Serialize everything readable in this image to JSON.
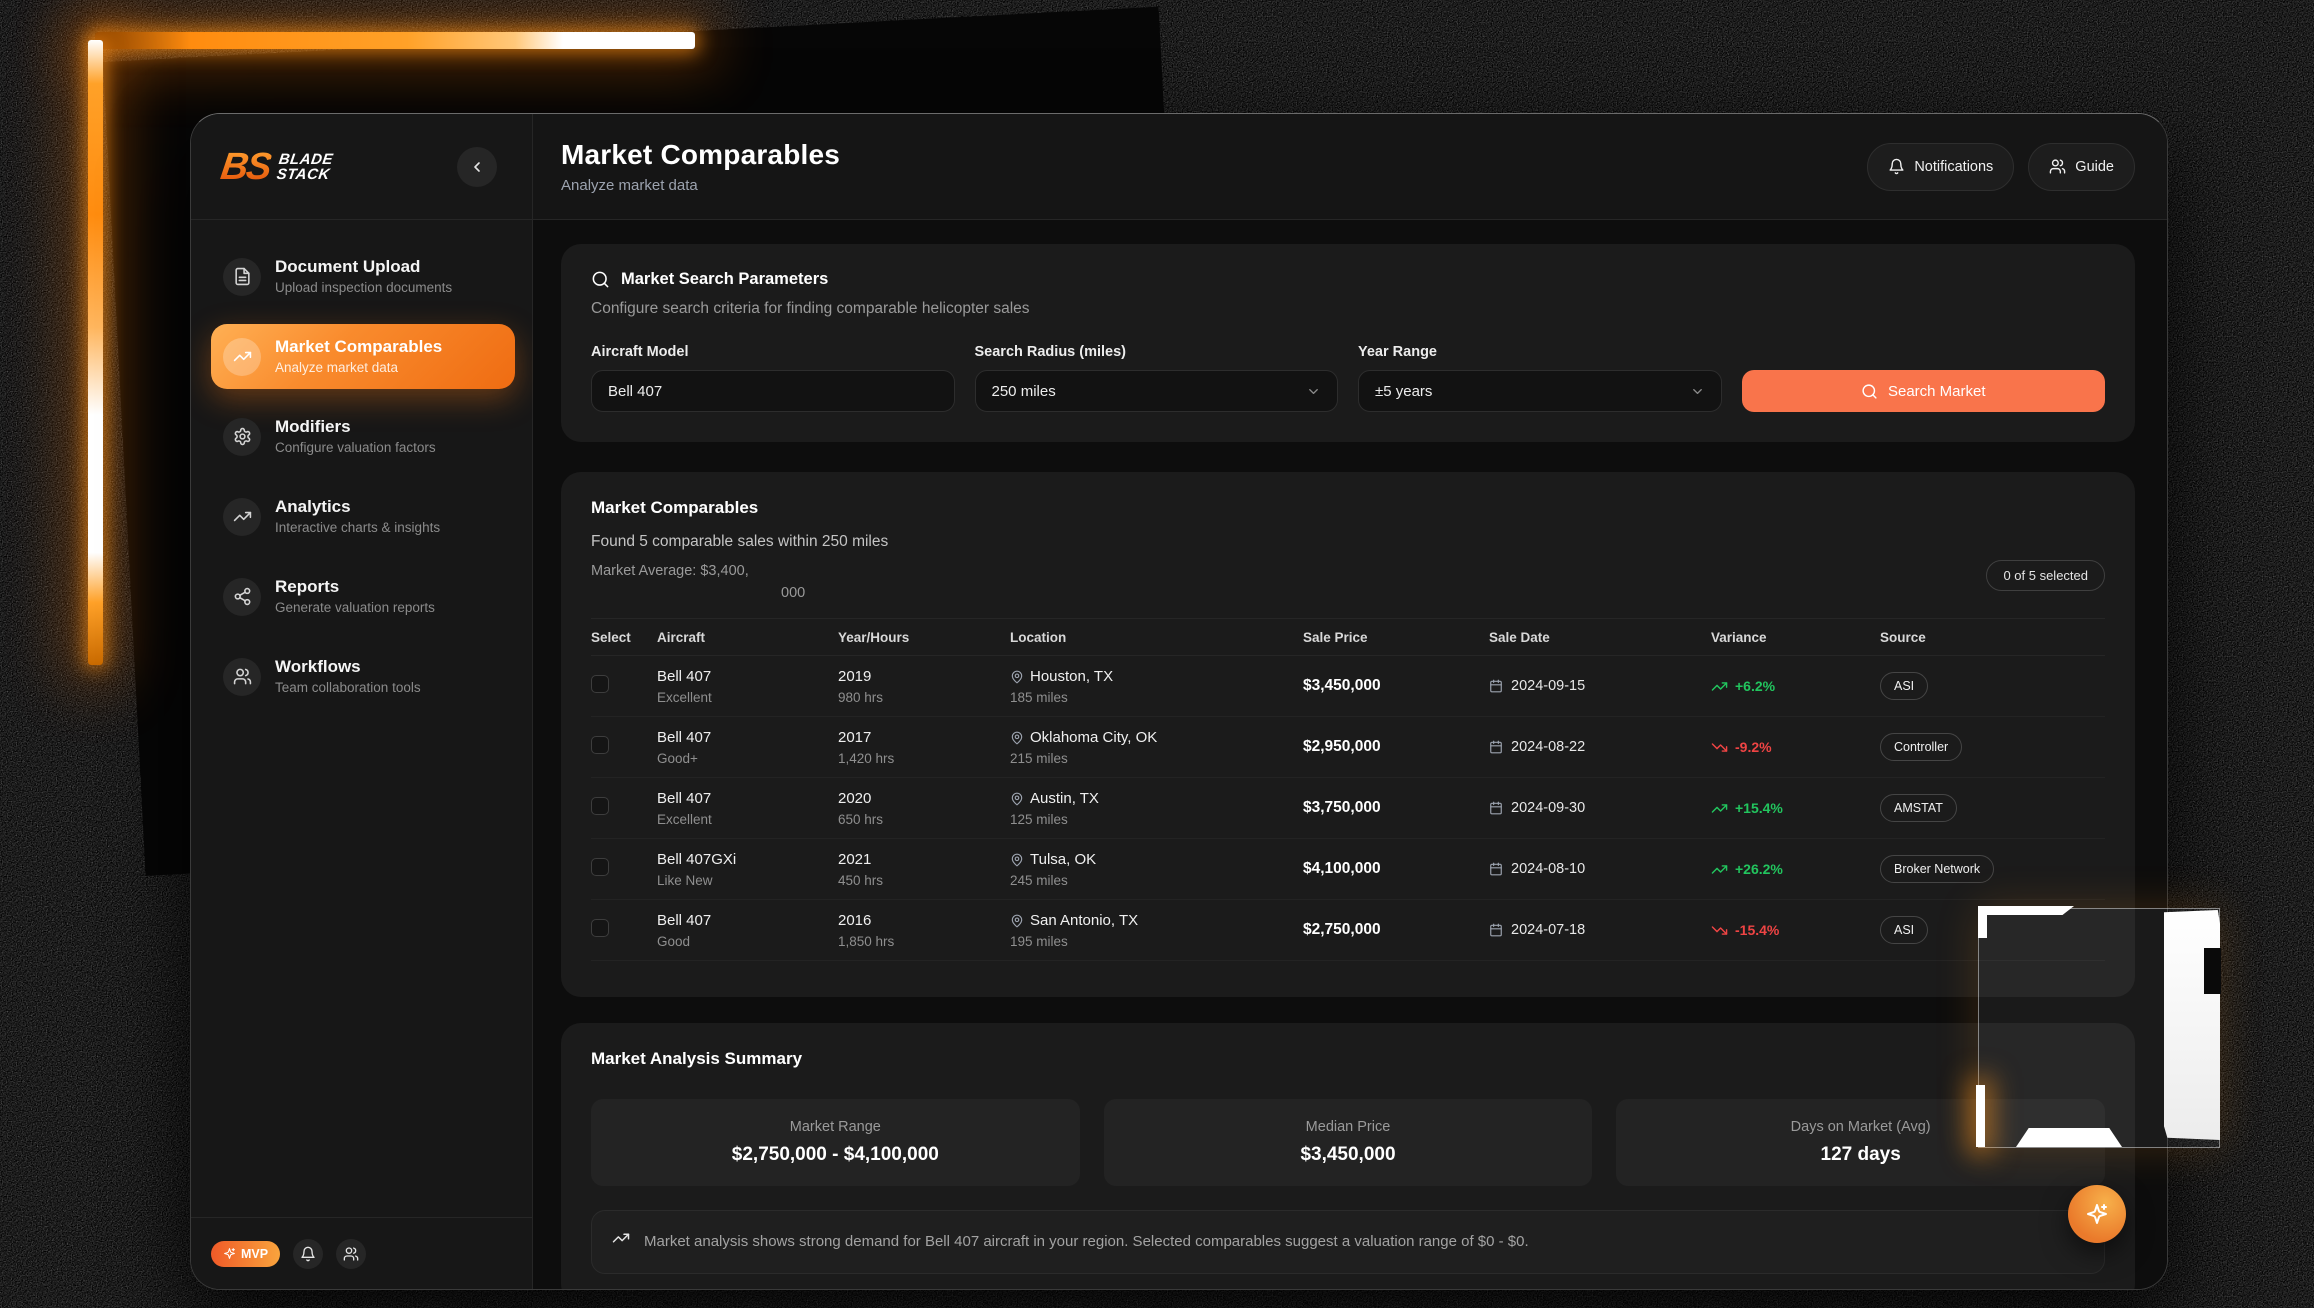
{
  "colors": {
    "accent": "#f97316",
    "accent_button": "#f9744b",
    "positive": "#22c55e",
    "negative": "#ef4444"
  },
  "brand": {
    "logo_mark": "BS",
    "logo_line1": "BLADE",
    "logo_line2": "STACK",
    "mvp_badge": "MVP"
  },
  "header": {
    "title": "Market Comparables",
    "subtitle": "Analyze market data",
    "notifications_label": "Notifications",
    "notifications_icon": "bell-icon",
    "guide_label": "Guide",
    "guide_icon": "users-icon"
  },
  "sidebar": {
    "items": [
      {
        "label": "Document Upload",
        "sublabel": "Upload inspection documents",
        "icon": "file-text-icon",
        "active": false
      },
      {
        "label": "Market Comparables",
        "sublabel": "Analyze market data",
        "icon": "trending-up-icon",
        "active": true
      },
      {
        "label": "Modifiers",
        "sublabel": "Configure valuation factors",
        "icon": "gear-icon",
        "active": false
      },
      {
        "label": "Analytics",
        "sublabel": "Interactive charts & insights",
        "icon": "trending-up-icon",
        "active": false
      },
      {
        "label": "Reports",
        "sublabel": "Generate valuation reports",
        "icon": "share-icon",
        "active": false
      },
      {
        "label": "Workflows",
        "sublabel": "Team collaboration tools",
        "icon": "users-icon",
        "active": false
      }
    ]
  },
  "search_panel": {
    "title": "Market Search Parameters",
    "title_icon": "search-icon",
    "subtitle": "Configure search criteria for finding comparable helicopter sales",
    "fields": [
      {
        "label": "Aircraft Model",
        "value": "Bell 407",
        "type": "input"
      },
      {
        "label": "Search Radius (miles)",
        "value": "250 miles",
        "type": "select"
      },
      {
        "label": "Year Range",
        "value": "±5 years",
        "type": "select"
      }
    ],
    "search_button": "Search Market"
  },
  "comparables": {
    "title": "Market Comparables",
    "found_text": "Found 5 comparable sales within 250 miles",
    "market_average_label": "Market Average:",
    "market_average_value_top": "$3,400,",
    "market_average_value_bottom": "000",
    "selected_badge": "0 of 5 selected",
    "columns": [
      "Select",
      "Aircraft",
      "Year/Hours",
      "Location",
      "Sale Price",
      "Sale Date",
      "Variance",
      "Source"
    ],
    "rows": [
      {
        "model": "Bell 407",
        "condition": "Excellent",
        "year": "2019",
        "hours": "980 hrs",
        "city": "Houston, TX",
        "distance": "185 miles",
        "price": "$3,450,000",
        "date": "2024-09-15",
        "variance": "+6.2%",
        "trend": "up",
        "source": "ASI"
      },
      {
        "model": "Bell 407",
        "condition": "Good+",
        "year": "2017",
        "hours": "1,420 hrs",
        "city": "Oklahoma City, OK",
        "distance": "215 miles",
        "price": "$2,950,000",
        "date": "2024-08-22",
        "variance": "-9.2%",
        "trend": "down",
        "source": "Controller"
      },
      {
        "model": "Bell 407",
        "condition": "Excellent",
        "year": "2020",
        "hours": "650 hrs",
        "city": "Austin, TX",
        "distance": "125 miles",
        "price": "$3,750,000",
        "date": "2024-09-30",
        "variance": "+15.4%",
        "trend": "up",
        "source": "AMSTAT"
      },
      {
        "model": "Bell 407GXi",
        "condition": "Like New",
        "year": "2021",
        "hours": "450 hrs",
        "city": "Tulsa, OK",
        "distance": "245 miles",
        "price": "$4,100,000",
        "date": "2024-08-10",
        "variance": "+26.2%",
        "trend": "up",
        "source": "Broker Network"
      },
      {
        "model": "Bell 407",
        "condition": "Good",
        "year": "2016",
        "hours": "1,850 hrs",
        "city": "San Antonio, TX",
        "distance": "195 miles",
        "price": "$2,750,000",
        "date": "2024-07-18",
        "variance": "-15.4%",
        "trend": "down",
        "source": "ASI"
      }
    ]
  },
  "summary": {
    "title": "Market Analysis Summary",
    "stats": [
      {
        "label": "Market Range",
        "value": "$2,750,000 - $4,100,000"
      },
      {
        "label": "Median Price",
        "value": "$3,450,000"
      },
      {
        "label": "Days on Market (Avg)",
        "value": "127 days"
      }
    ],
    "note_icon": "trending-up-icon",
    "note": "Market analysis shows strong demand for Bell 407 aircraft in your region. Selected comparables suggest a valuation range of $0 - $0."
  }
}
